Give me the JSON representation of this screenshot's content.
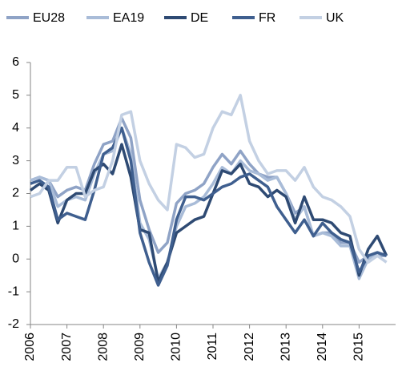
{
  "chart_data": {
    "type": "line",
    "x": [
      2006,
      2006.25,
      2006.5,
      2006.75,
      2007,
      2007.25,
      2007.5,
      2007.75,
      2008,
      2008.25,
      2008.5,
      2008.75,
      2009,
      2009.25,
      2009.5,
      2009.75,
      2010,
      2010.25,
      2010.5,
      2010.75,
      2011,
      2011.25,
      2011.5,
      2011.75,
      2012,
      2012.25,
      2012.5,
      2012.75,
      2013,
      2013.25,
      2013.5,
      2013.75,
      2014,
      2014.25,
      2014.5,
      2014.75,
      2015,
      2015.25,
      2015.5,
      2015.75
    ],
    "series": [
      {
        "name": "EU28",
        "color": "#8fa3c6",
        "values": [
          2.4,
          2.5,
          2.4,
          1.9,
          2.1,
          2.2,
          2.1,
          2.9,
          3.5,
          3.6,
          4.3,
          3.7,
          1.8,
          0.9,
          0.2,
          0.5,
          1.7,
          2.0,
          2.1,
          2.3,
          2.8,
          3.2,
          2.9,
          3.3,
          2.9,
          2.6,
          2.5,
          2.5,
          2.0,
          1.4,
          1.6,
          0.7,
          0.8,
          0.8,
          0.5,
          0.5,
          -0.1,
          0.1,
          0.1,
          0.1
        ]
      },
      {
        "name": "EA19",
        "color": "#a9bcd8",
        "values": [
          2.4,
          2.5,
          2.4,
          1.6,
          1.8,
          1.9,
          1.8,
          2.6,
          3.2,
          3.3,
          4.0,
          3.2,
          1.1,
          0.6,
          -0.6,
          -0.1,
          1.0,
          1.6,
          1.7,
          1.9,
          2.3,
          2.8,
          2.6,
          3.0,
          2.7,
          2.6,
          2.4,
          2.5,
          2.0,
          1.2,
          1.6,
          0.7,
          0.8,
          0.7,
          0.4,
          0.4,
          -0.6,
          0.0,
          0.2,
          0.1
        ]
      },
      {
        "name": "DE",
        "color": "#2e4a73",
        "values": [
          2.1,
          2.3,
          2.1,
          1.1,
          1.8,
          2.0,
          2.0,
          2.7,
          2.9,
          2.6,
          3.5,
          2.5,
          0.9,
          0.8,
          -0.7,
          -0.1,
          0.8,
          1.0,
          1.2,
          1.3,
          2.0,
          2.7,
          2.6,
          2.9,
          2.3,
          2.2,
          1.9,
          2.1,
          1.9,
          1.1,
          1.9,
          1.2,
          1.2,
          1.1,
          0.8,
          0.7,
          -0.5,
          0.3,
          0.7,
          0.1
        ]
      },
      {
        "name": "FR",
        "color": "#3f5f8f",
        "values": [
          2.3,
          2.4,
          2.2,
          1.2,
          1.4,
          1.3,
          1.2,
          2.1,
          3.2,
          3.4,
          4.0,
          3.0,
          0.8,
          -0.1,
          -0.8,
          -0.2,
          1.2,
          1.9,
          1.9,
          1.8,
          2.0,
          2.2,
          2.3,
          2.5,
          2.6,
          2.4,
          2.2,
          1.6,
          1.2,
          0.8,
          1.2,
          0.7,
          1.1,
          0.8,
          0.6,
          0.5,
          -0.4,
          0.1,
          0.2,
          0.1
        ]
      },
      {
        "name": "UK",
        "color": "#c3d0e3",
        "values": [
          1.9,
          2.0,
          2.4,
          2.4,
          2.8,
          2.8,
          1.9,
          2.1,
          2.2,
          3.0,
          4.4,
          4.5,
          3.0,
          2.3,
          1.8,
          1.5,
          3.5,
          3.4,
          3.1,
          3.2,
          4.0,
          4.5,
          4.4,
          5.0,
          3.6,
          3.0,
          2.6,
          2.7,
          2.7,
          2.4,
          2.8,
          2.2,
          1.9,
          1.8,
          1.6,
          1.3,
          0.3,
          -0.1,
          0.1,
          -0.1
        ]
      }
    ],
    "xlim": [
      2006,
      2016
    ],
    "xticks": [
      2006,
      2007,
      2008,
      2009,
      2010,
      2011,
      2012,
      2013,
      2014,
      2015
    ],
    "ylim": [
      -2,
      6
    ],
    "yticks": [
      -2,
      -1,
      0,
      1,
      2,
      3,
      4,
      5,
      6
    ],
    "grid": false
  }
}
